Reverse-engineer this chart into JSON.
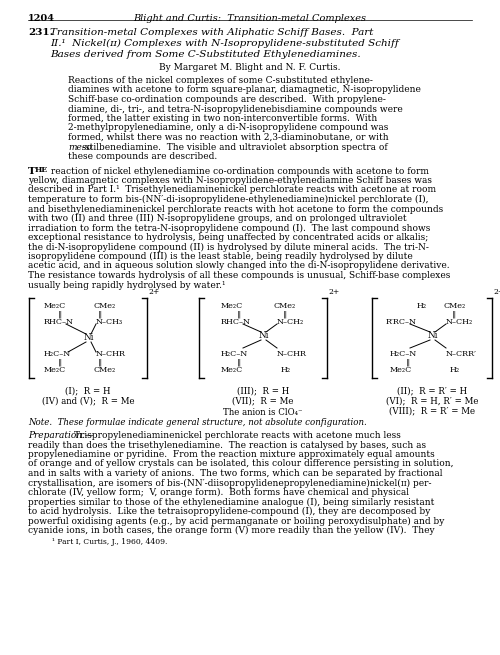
{
  "page_number": "1204",
  "header_italic": "Blight and Curtis:  Transition-metal Complexes",
  "article_number": "231.",
  "title_lines": [
    "Transition-metal Complexes with Aliphatic Schiff Bases.  Part",
    "II.¹  Nickel(ɪɪ) Complexes with N-Isopropylidene-substituted Schiff",
    "Bases derived from Some C-Substituted Ethylenediamines."
  ],
  "byline": "By Margaret M. Blight and N. F. Curtis.",
  "abstract_lines": [
    "Reactions of the nickel complexes of some C-substituted ethylene-",
    "diamines with acetone to form square-planar, diamagnetic, N-isopropylidene",
    "Schiff-base co-ordination compounds are described.  With propylene-",
    "diamine, di-, tri-, and tetra-N-isopropylidenebisdiamine compounds were",
    "formed, the latter existing in two non-interconvertible forms.  With",
    "2-methylpropylenediamine, only a di-N-isopropylidene compound was",
    "formed, whilst there was no reaction with 2,3-diaminobutane, or with",
    "meso-stilbenediamine.  The visible and ultraviolet absorption spectra of",
    "these compounds are described."
  ],
  "abstract_meso_line": 7,
  "body_lines": [
    " reaction of nickel ethylenediamine co-ordination compounds with acetone to form",
    "yellow, diamagnetic complexes with N-isopropylidene-ethylenediamine Schiff bases was",
    "described in Part I.¹  Trisethylenediaminenickel perchlorate reacts with acetone at room",
    "temperature to form bis-(NN′-di-isopropylidene-ethylenediamine)nickel perchlorate (I),",
    "and bisethylenediaminenickel perchlorate reacts with hot acetone to form the compounds",
    "with two (II) and three (III) N-isopropylidene groups, and on prolonged ultraviolet",
    "irradiation to form the tetra-N-isopropylidene compound (I).  The last compound shows",
    "exceptional resistance to hydrolysis, being unaffected by concentrated acids or alkalis;",
    "the di-N-isopropylidene compound (II) is hydrolysed by dilute mineral acids.  The tri-N-",
    "isopropylidene compound (III) is the least stable, being readily hydrolysed by dilute",
    "acetic acid, and in aqueous solution slowly changed into the di-N-isopropylidene derivative.",
    "The resistance towards hydrolysis of all these compounds is unusual, Schiff-base complexes",
    "usually being rapidly hydrolysed by water.¹"
  ],
  "prep_lines": [
    "Preparation.—Trispropylenediaminenickel perchlorate reacts with acetone much less",
    "readily than does the trisethylenediamine.  The reaction is catalysed by bases, such as",
    "propylenediamine or pyridine.  From the reaction mixture approximately equal amounts",
    "of orange and of yellow crystals can be isolated, this colour difference persisting in solution,",
    "and in salts with a variety of anions.  The two forms, which can be separated by fractional",
    "crystallisation, are isomers of bis-(NN′-diisopropylidenepropylenediamine)nickel(ɪɪ) per-",
    "chlorate (IV, yellow form;  V, orange form).  Both forms have chemical and physical",
    "properties similar to those of the ethylenediamine analogue (I), being similarly resistant",
    "to acid hydrolysis.  Like the tetraisopropylidene-compound (I), they are decomposed by",
    "powerful oxidising agents (e.g., by acid permanganate or boiling peroxydisulphate) and by",
    "cyanide ions, in both cases, the orange form (V) more readily than the yellow (IV).  They"
  ],
  "footnote": "¹ Part I, Curtis, J., 1960, 4409.",
  "note_line": "Note.  These formulae indicate general structure, not absolute configuration.",
  "anion_line": "The anion is ClO₄⁻",
  "struct1_labels_below": [
    "(I);  R = H",
    "(IV) and (V);  R = Me"
  ],
  "struct2_labels_below": [
    "(III);  R = H",
    "(VII);  R = Me"
  ],
  "struct3_labels_below": [
    "(II);  R = R′ = H",
    "(VI);  R = H, R′ = Me",
    "(VIII);  R = R′ = Me"
  ],
  "bg_color": "#ffffff"
}
